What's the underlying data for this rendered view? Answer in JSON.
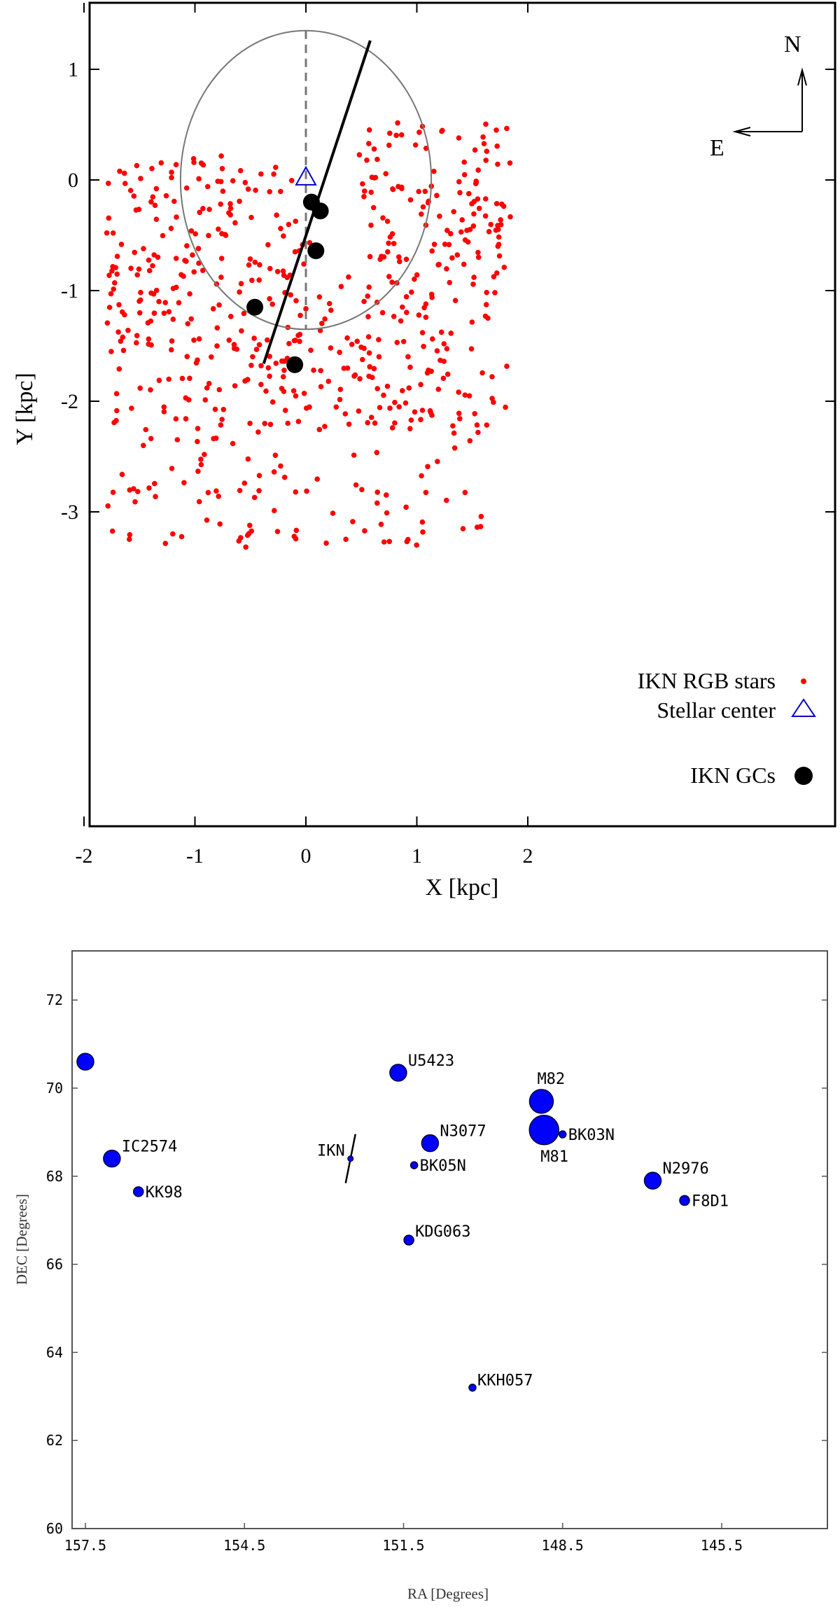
{
  "chart_data": [
    {
      "type": "scatter",
      "xlabel": "X [kpc]",
      "ylabel": "Y [kpc]",
      "xlim": [
        -2.2,
        2.4
      ],
      "ylim": [
        -3.5,
        1.6
      ],
      "xticks": [
        "-2",
        "-1",
        "0",
        "1",
        "2"
      ],
      "yticks": [
        "1",
        "0",
        "-1",
        "-2",
        "-3"
      ],
      "compass": {
        "north": "N",
        "east": "E"
      },
      "legend": [
        "IKN RGB stars",
        "Stellar center",
        "IKN GCs"
      ],
      "legend_position": "bottom-right",
      "rgb_star_count": 620,
      "stellar_center": {
        "x": 0.0,
        "y": 0.02
      },
      "globular_clusters": [
        {
          "x": 0.05,
          "y": -0.2
        },
        {
          "x": 0.13,
          "y": -0.28
        },
        {
          "x": 0.09,
          "y": -0.64
        },
        {
          "x": -0.46,
          "y": -1.15
        },
        {
          "x": -0.1,
          "y": -1.67
        }
      ],
      "ellipse": {
        "cx": 0.0,
        "cy": 0.0,
        "rx": 1.13,
        "ry": 1.35
      },
      "major_axis": {
        "x1": -0.38,
        "y1": -1.66,
        "x2": 0.58,
        "y2": 1.26
      },
      "minor_axis_dashed": {
        "x1": 0.0,
        "y1": 1.35,
        "x2": 0.0,
        "y2": -1.35
      },
      "colors": {
        "rgb": "#ff0000",
        "center": "#0000cc",
        "gc": "#000000",
        "ellipse": "#777777"
      }
    },
    {
      "type": "scatter",
      "xlabel": "RA [Degrees]",
      "ylabel": "DEC [Degrees]",
      "xlim": [
        157.8,
        145.2
      ],
      "ylim": [
        60,
        73
      ],
      "xticks": [
        "157.5",
        "154.5",
        "151.5",
        "148.5",
        "145.5"
      ],
      "yticks": [
        "72",
        "70",
        "68",
        "66",
        "64",
        "62",
        "60"
      ],
      "ikn_label": "IKN",
      "ikn": {
        "ra": 152.5,
        "dec": 68.4
      },
      "galaxies": [
        {
          "name": "",
          "ra": 157.5,
          "dec": 70.6,
          "size": "medium"
        },
        {
          "name": "U5423",
          "ra": 151.6,
          "dec": 70.35,
          "size": "medium"
        },
        {
          "name": "M82",
          "ra": 148.9,
          "dec": 69.7,
          "size": "large"
        },
        {
          "name": "M81",
          "ra": 148.85,
          "dec": 69.05,
          "size": "xlarge"
        },
        {
          "name": "BK03N",
          "ra": 148.5,
          "dec": 68.95,
          "size": "tiny"
        },
        {
          "name": "N3077",
          "ra": 151.0,
          "dec": 68.75,
          "size": "medium"
        },
        {
          "name": "IC2574",
          "ra": 157.0,
          "dec": 68.4,
          "size": "medium"
        },
        {
          "name": "BK05N",
          "ra": 151.3,
          "dec": 68.25,
          "size": "tiny"
        },
        {
          "name": "KK98",
          "ra": 156.5,
          "dec": 67.65,
          "size": "small"
        },
        {
          "name": "N2976",
          "ra": 146.8,
          "dec": 67.9,
          "size": "medium"
        },
        {
          "name": "F8D1",
          "ra": 146.2,
          "dec": 67.45,
          "size": "small"
        },
        {
          "name": "KDG063",
          "ra": 151.4,
          "dec": 66.55,
          "size": "small"
        },
        {
          "name": "KKH057",
          "ra": 150.2,
          "dec": 63.2,
          "size": "tiny"
        }
      ],
      "colors": {
        "galaxy": "#0000ff",
        "galaxy_edge": "#000033"
      }
    }
  ]
}
